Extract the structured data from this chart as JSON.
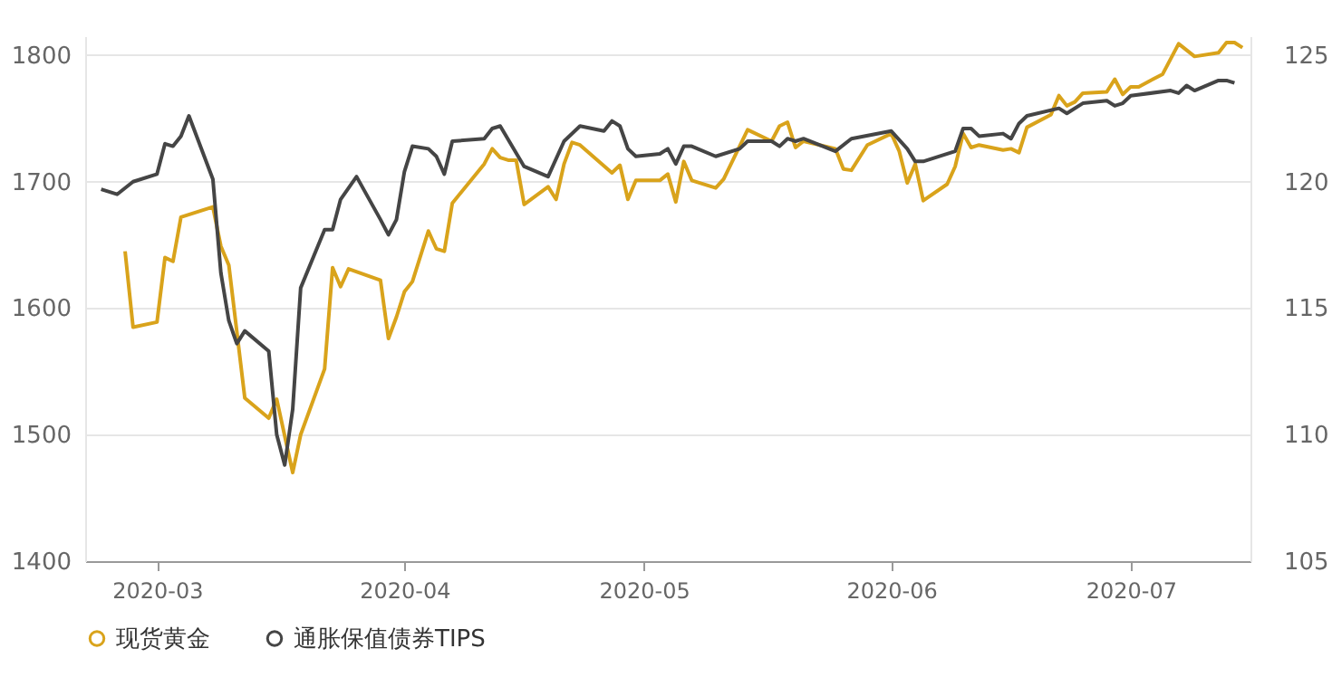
{
  "chart_data": {
    "type": "line",
    "xlim": [
      "2020-02-21",
      "2020-07-16"
    ],
    "xticks": [
      "2020-03",
      "2020-04",
      "2020-05",
      "2020-06",
      "2020-07"
    ],
    "ylim": [
      1400,
      1815
    ],
    "yticks": [
      1400,
      1500,
      1600,
      1700,
      1800
    ],
    "y2lim": [
      105,
      125.75
    ],
    "y2ticks": [
      105,
      110,
      115,
      120,
      125
    ],
    "grid": "y",
    "legend": "bottom",
    "line_style": "solid",
    "series": [
      {
        "name": "现货黄金",
        "color": "#d9a31b",
        "x": [
          "2020-02-26",
          "2020-02-27",
          "2020-03-01",
          "2020-03-02",
          "2020-03-03",
          "2020-03-04",
          "2020-03-08",
          "2020-03-09",
          "2020-03-10",
          "2020-03-12",
          "2020-03-15",
          "2020-03-16",
          "2020-03-18",
          "2020-03-19",
          "2020-03-22",
          "2020-03-23",
          "2020-03-24",
          "2020-03-25",
          "2020-03-29",
          "2020-03-30",
          "2020-03-31",
          "2020-04-01",
          "2020-04-02",
          "2020-04-04",
          "2020-04-05",
          "2020-04-06",
          "2020-04-07",
          "2020-04-11",
          "2020-04-12",
          "2020-04-13",
          "2020-04-14",
          "2020-04-15",
          "2020-04-16",
          "2020-04-19",
          "2020-04-20",
          "2020-04-21",
          "2020-04-22",
          "2020-04-23",
          "2020-04-27",
          "2020-04-28",
          "2020-04-29",
          "2020-04-30",
          "2020-05-03",
          "2020-05-04",
          "2020-05-05",
          "2020-05-06",
          "2020-05-07",
          "2020-05-10",
          "2020-05-11",
          "2020-05-14",
          "2020-05-17",
          "2020-05-18",
          "2020-05-19",
          "2020-05-20",
          "2020-05-21",
          "2020-05-25",
          "2020-05-26",
          "2020-05-27",
          "2020-05-29",
          "2020-06-01",
          "2020-06-02",
          "2020-06-03",
          "2020-06-04",
          "2020-06-05",
          "2020-06-08",
          "2020-06-09",
          "2020-06-10",
          "2020-06-11",
          "2020-06-12",
          "2020-06-15",
          "2020-06-16",
          "2020-06-17",
          "2020-06-18",
          "2020-06-21",
          "2020-06-22",
          "2020-06-23",
          "2020-06-24",
          "2020-06-25",
          "2020-06-28",
          "2020-06-29",
          "2020-06-30",
          "2020-07-01",
          "2020-07-02",
          "2020-07-05",
          "2020-07-07",
          "2020-07-09",
          "2020-07-12",
          "2020-07-13",
          "2020-07-14",
          "2020-07-15"
        ],
        "values": [
          1645,
          1585,
          1589,
          1640,
          1637,
          1672,
          1680,
          1649,
          1634,
          1529,
          1513,
          1528,
          1470,
          1500,
          1552,
          1632,
          1617,
          1631,
          1622,
          1576,
          1593,
          1613,
          1621,
          1661,
          1647,
          1645,
          1683,
          1714,
          1726,
          1719,
          1717,
          1717,
          1682,
          1696,
          1686,
          1714,
          1731,
          1729,
          1707,
          1713,
          1686,
          1701,
          1701,
          1706,
          1684,
          1716,
          1701,
          1695,
          1702,
          1741,
          1732,
          1744,
          1747,
          1727,
          1732,
          1726,
          1710,
          1709,
          1729,
          1738,
          1724,
          1699,
          1714,
          1685,
          1698,
          1712,
          1738,
          1727,
          1729,
          1725,
          1726,
          1723,
          1743,
          1753,
          1768,
          1760,
          1763,
          1770,
          1771,
          1781,
          1769,
          1775,
          1775,
          1785,
          1809,
          1799,
          1802,
          1810,
          1810,
          1806
        ]
      },
      {
        "name": "通胀保值债券TIPS",
        "color": "#454545",
        "axis": "y2",
        "x": [
          "2020-02-23",
          "2020-02-25",
          "2020-02-27",
          "2020-03-01",
          "2020-03-02",
          "2020-03-03",
          "2020-03-04",
          "2020-03-05",
          "2020-03-08",
          "2020-03-09",
          "2020-03-10",
          "2020-03-11",
          "2020-03-12",
          "2020-03-15",
          "2020-03-16",
          "2020-03-17",
          "2020-03-18",
          "2020-03-19",
          "2020-03-22",
          "2020-03-23",
          "2020-03-24",
          "2020-03-26",
          "2020-03-29",
          "2020-03-30",
          "2020-03-31",
          "2020-04-01",
          "2020-04-02",
          "2020-04-04",
          "2020-04-05",
          "2020-04-06",
          "2020-04-07",
          "2020-04-11",
          "2020-04-12",
          "2020-04-13",
          "2020-04-16",
          "2020-04-19",
          "2020-04-21",
          "2020-04-23",
          "2020-04-26",
          "2020-04-27",
          "2020-04-28",
          "2020-04-29",
          "2020-04-30",
          "2020-05-03",
          "2020-05-04",
          "2020-05-05",
          "2020-05-06",
          "2020-05-07",
          "2020-05-10",
          "2020-05-13",
          "2020-05-14",
          "2020-05-17",
          "2020-05-18",
          "2020-05-19",
          "2020-05-20",
          "2020-05-21",
          "2020-05-25",
          "2020-05-27",
          "2020-06-01",
          "2020-06-03",
          "2020-06-04",
          "2020-06-05",
          "2020-06-09",
          "2020-06-10",
          "2020-06-11",
          "2020-06-12",
          "2020-06-15",
          "2020-06-16",
          "2020-06-17",
          "2020-06-18",
          "2020-06-22",
          "2020-06-23",
          "2020-06-25",
          "2020-06-28",
          "2020-06-29",
          "2020-06-30",
          "2020-07-01",
          "2020-07-06",
          "2020-07-07",
          "2020-07-08",
          "2020-07-09",
          "2020-07-12",
          "2020-07-13",
          "2020-07-14"
        ],
        "values": [
          119.7,
          119.5,
          120.0,
          120.3,
          121.5,
          121.4,
          121.8,
          122.6,
          120.1,
          116.4,
          114.5,
          113.6,
          114.1,
          113.3,
          110.0,
          108.8,
          111.0,
          115.8,
          118.1,
          118.1,
          119.3,
          120.2,
          118.5,
          117.9,
          118.5,
          120.4,
          121.4,
          121.3,
          121.0,
          120.3,
          121.6,
          121.7,
          122.1,
          122.2,
          120.6,
          120.2,
          121.6,
          122.2,
          122.0,
          122.4,
          122.2,
          121.3,
          121.0,
          121.1,
          121.3,
          120.7,
          121.4,
          121.4,
          121.0,
          121.3,
          121.6,
          121.6,
          121.4,
          121.7,
          121.6,
          121.7,
          121.2,
          121.7,
          122.0,
          121.3,
          120.8,
          120.8,
          121.2,
          122.1,
          122.1,
          121.8,
          121.9,
          121.7,
          122.3,
          122.6,
          122.9,
          122.7,
          123.1,
          123.2,
          123.0,
          123.1,
          123.4,
          123.6,
          123.5,
          123.8,
          123.6,
          124.0,
          124.0,
          123.9
        ]
      }
    ]
  }
}
